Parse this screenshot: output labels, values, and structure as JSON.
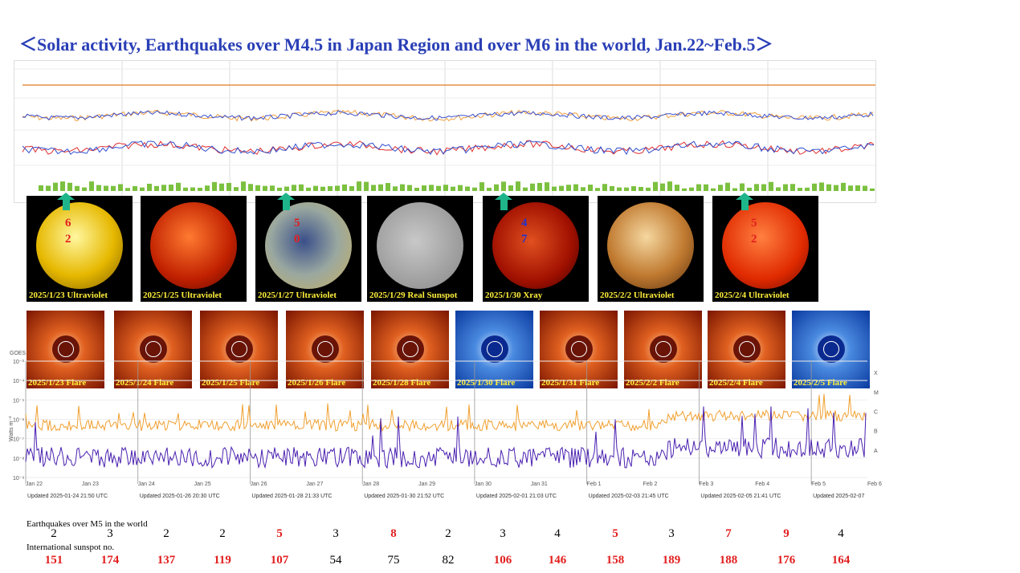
{
  "title": "＜Solar activity, Earthquakes over M4.5 in Japan Region and over M6 in the world, Jan.22~Feb.5＞",
  "suns": [
    {
      "caption": "2025/1/23 Ultraviolet",
      "mag": [
        "6",
        "2"
      ],
      "mag_color": "#e21f1f"
    },
    {
      "caption": "2025/1/25 Ultraviolet",
      "mag": [],
      "mag_color": "#e21f1f"
    },
    {
      "caption": "2025/1/27 Ultraviolet",
      "mag": [
        "5",
        "0"
      ],
      "mag_color": "#e21f1f"
    },
    {
      "caption": "2025/1/29 Real Sunspot",
      "mag": [],
      "mag_color": "#e21f1f"
    },
    {
      "caption": "2025/1/30 Xray",
      "mag": [
        "4",
        "7"
      ],
      "mag_color": "#2233cc"
    },
    {
      "caption": "2025/2/2 Ultraviolet",
      "mag": [],
      "mag_color": "#e21f1f"
    },
    {
      "caption": "2025/2/4 Ultraviolet",
      "mag": [
        "5",
        "2"
      ],
      "mag_color": "#e21f1f"
    }
  ],
  "flares": [
    "2025/1/23 Flare",
    "2025/1/24 Flare",
    "2025/1/25 Flare",
    "2025/1/26 Flare",
    "2025/1/28 Flare",
    "2025/1/30 Flare",
    "2025/1/31 Flare",
    "2025/2/2 Flare",
    "2025/2/4 Flare",
    "2025/2/5 Flare"
  ],
  "goes": {
    "corner_label": "GOES",
    "ylabel": "Watts m⁻²",
    "y_ticks": [
      "10⁻³",
      "10⁻⁴",
      "10⁻⁵",
      "10⁻⁶",
      "10⁻⁷",
      "10⁻⁸",
      "10⁻⁹"
    ],
    "classes": [
      "X",
      "M",
      "C",
      "B",
      "A"
    ],
    "x_ticks": [
      "Jan 22",
      "Jan 23",
      "Jan 24",
      "Jan 25",
      "Jan 26",
      "Jan 27",
      "Jan 28",
      "Jan 29",
      "Jan 30",
      "Jan 31",
      "Feb 1",
      "Feb 2",
      "Feb 3",
      "Feb 4",
      "Feb 5",
      "Feb 6"
    ],
    "updated": [
      "Updated 2025-01-24 21:50 UTC",
      "Updated 2025-01-26 20:30 UTC",
      "Updated 2025-01-28 21:33 UTC",
      "Updated 2025-01-30 21:52 UTC",
      "Updated 2025-02-01 21:03 UTC",
      "Updated 2025-02-03 21:45 UTC",
      "Updated 2025-02-05 21:41 UTC",
      "Updated 2025-02-07"
    ]
  },
  "labels": {
    "earthquakes": "Earthquakes over M5 in the world",
    "sunspot": "International sunspot  no."
  },
  "chart_data": {
    "type": "table",
    "rows": [
      {
        "name": "Earthquakes over M5 in the world",
        "values": [
          2,
          3,
          2,
          2,
          5,
          3,
          8,
          2,
          3,
          4,
          5,
          3,
          7,
          9,
          4
        ]
      },
      {
        "name": "International sunspot  no.",
        "values": [
          151,
          174,
          137,
          119,
          107,
          54,
          75,
          82,
          106,
          146,
          158,
          189,
          188,
          176,
          164
        ]
      }
    ],
    "earthquake_highlight": [
      false,
      false,
      false,
      false,
      true,
      false,
      true,
      false,
      false,
      false,
      true,
      false,
      true,
      true,
      false
    ],
    "sunspot_highlight": [
      true,
      true,
      true,
      true,
      true,
      false,
      false,
      false,
      true,
      true,
      true,
      true,
      true,
      true,
      true
    ]
  },
  "colors": {
    "highlight": "#e21f1f",
    "normal": "#000000",
    "title": "#2a3fb6",
    "arrow": "#1fb58b"
  }
}
